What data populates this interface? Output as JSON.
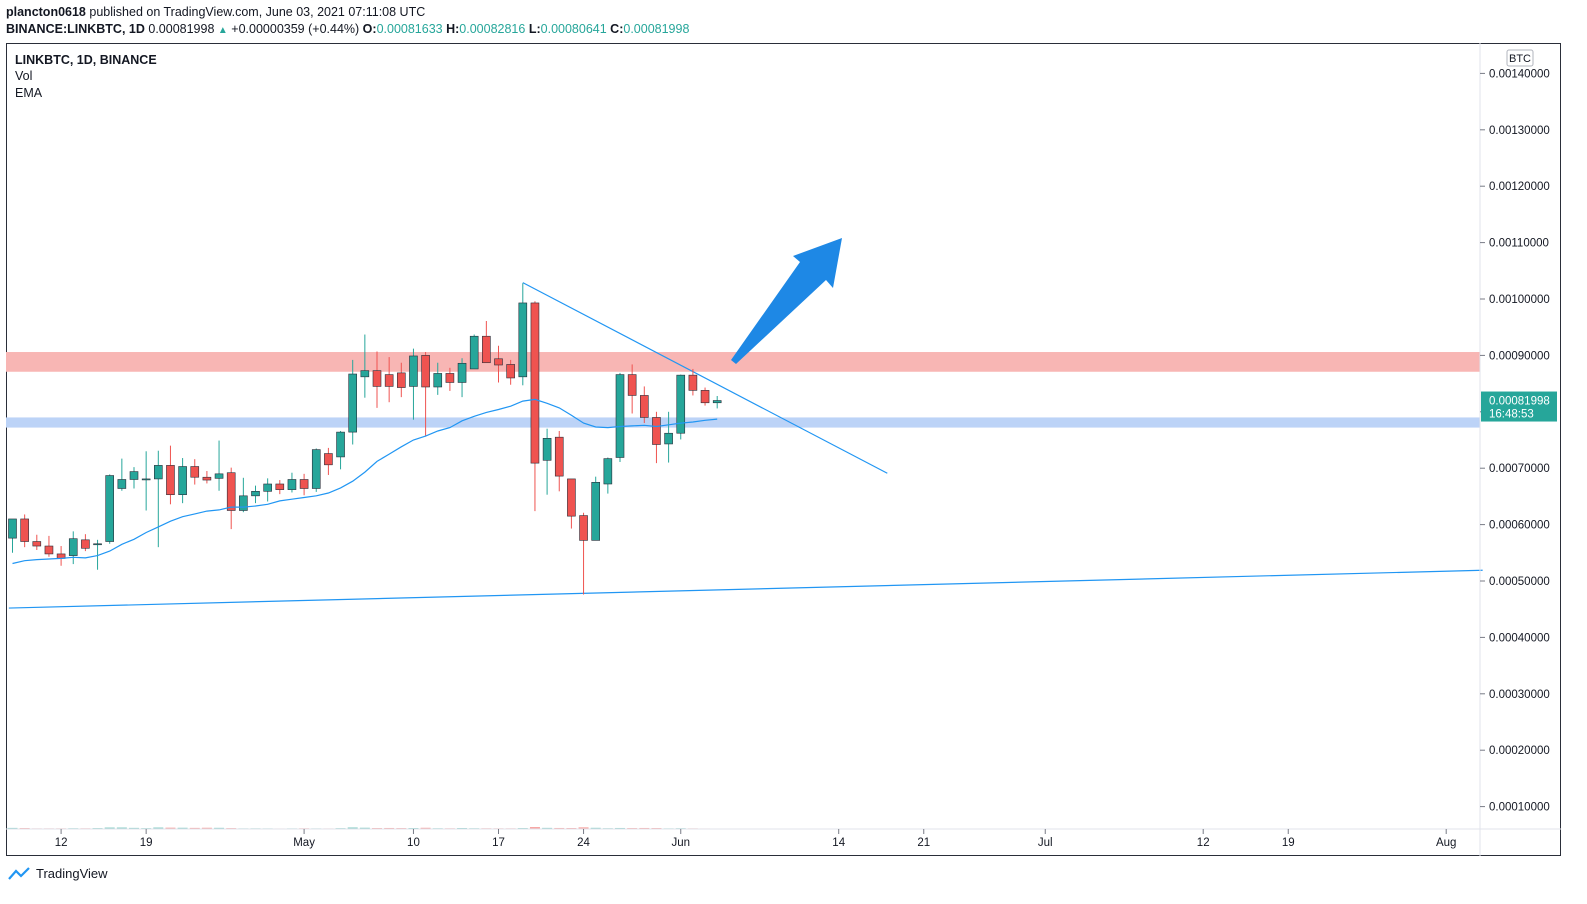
{
  "header": {
    "author": "plancton0618",
    "published_text": "published on TradingView.com, June 03, 2021 07:11:08 UTC",
    "symbol_line": "BINANCE:LINKBTC, 1D",
    "last_price": "0.00081998",
    "change_text": "+0.00000359 (+0.44%)",
    "open_label": "O:",
    "open": "0.00081633",
    "high_label": "H:",
    "high": "0.00082816",
    "low_label": "L:",
    "low": "0.00080641",
    "close_label": "C:",
    "close": "0.00081998"
  },
  "legend": {
    "title": "LINKBTC, 1D, BINANCE",
    "vol": "Vol",
    "ema": "EMA"
  },
  "price_axis": {
    "currency": "BTC",
    "last_price_label": "0.00081998",
    "countdown": "16:48:53"
  },
  "footer": {
    "brand": "TradingView"
  },
  "chart_data": {
    "type": "candlestick",
    "symbol": "BINANCE:LINKBTC",
    "interval": "1D",
    "y_ticks": [
      "0.00010000",
      "0.00020000",
      "0.00030000",
      "0.00040000",
      "0.00050000",
      "0.00060000",
      "0.00070000",
      "0.00080000",
      "0.00090000",
      "0.00100000",
      "0.00110000",
      "0.00120000",
      "0.00130000",
      "0.00140000"
    ],
    "x_ticks": [
      "12",
      "19",
      "May",
      "10",
      "17",
      "24",
      "Jun",
      "14",
      "21",
      "Jul",
      "12",
      "19",
      "Aug"
    ],
    "ylim": [
      0.0,
      0.00145
    ],
    "colors": {
      "up": "#26a69a",
      "down": "#ef5350",
      "vol_up": "#94d2cc",
      "vol_down": "#f7a5a3",
      "ema": "#2196f3",
      "resistance": "#f8b6b4",
      "support": "#bcd3f7",
      "arrow": "#1e88e5",
      "trendline": "#2196f3",
      "price_tag": "#26a69a"
    },
    "candles": [
      {
        "o": 0.000576,
        "h": 0.00061,
        "l": 0.00055,
        "c": 0.00061,
        "v": 0.000232
      },
      {
        "o": 0.00061,
        "h": 0.000618,
        "l": 0.00056,
        "c": 0.00057,
        "v": 0.000194
      },
      {
        "o": 0.00057,
        "h": 0.000582,
        "l": 0.000555,
        "c": 0.000562,
        "v": 0.00013
      },
      {
        "o": 0.000562,
        "h": 0.00058,
        "l": 0.000543,
        "c": 0.000548,
        "v": 0.000133
      },
      {
        "o": 0.000548,
        "h": 0.000562,
        "l": 0.000527,
        "c": 0.00054,
        "v": 0.00014
      },
      {
        "o": 0.000545,
        "h": 0.000588,
        "l": 0.00053,
        "c": 0.000575,
        "v": 0.000166
      },
      {
        "o": 0.000573,
        "h": 0.000583,
        "l": 0.000553,
        "c": 0.000558,
        "v": 0.000147
      },
      {
        "o": 0.000565,
        "h": 0.000573,
        "l": 0.00052,
        "c": 0.000566,
        "v": 0.000196
      },
      {
        "o": 0.00057,
        "h": 0.000689,
        "l": 0.000566,
        "c": 0.000687,
        "v": 0.000316
      },
      {
        "o": 0.000664,
        "h": 0.000717,
        "l": 0.00066,
        "c": 0.00068,
        "v": 0.000319
      },
      {
        "o": 0.00068,
        "h": 0.000702,
        "l": 0.000664,
        "c": 0.000694,
        "v": 0.000237
      },
      {
        "o": 0.00068,
        "h": 0.00073,
        "l": 0.000625,
        "c": 0.000681,
        "v": 0.000186
      },
      {
        "o": 0.000681,
        "h": 0.000731,
        "l": 0.00056,
        "c": 0.000705,
        "v": 0.000319
      },
      {
        "o": 0.000705,
        "h": 0.00074,
        "l": 0.000636,
        "c": 0.000653,
        "v": 0.00028
      },
      {
        "o": 0.000653,
        "h": 0.000718,
        "l": 0.000638,
        "c": 0.000703,
        "v": 0.000263
      },
      {
        "o": 0.000703,
        "h": 0.000716,
        "l": 0.000671,
        "c": 0.000684,
        "v": 0.000234
      },
      {
        "o": 0.000684,
        "h": 0.000695,
        "l": 0.000673,
        "c": 0.000679,
        "v": 0.000262
      },
      {
        "o": 0.000682,
        "h": 0.000749,
        "l": 0.00066,
        "c": 0.00069,
        "v": 0.000248
      },
      {
        "o": 0.000692,
        "h": 0.000701,
        "l": 0.000592,
        "c": 0.000625,
        "v": 0.000188
      },
      {
        "o": 0.000625,
        "h": 0.000683,
        "l": 0.000622,
        "c": 0.000651,
        "v": 0.000136
      },
      {
        "o": 0.000651,
        "h": 0.000669,
        "l": 0.000638,
        "c": 0.000659,
        "v": 0.000146
      },
      {
        "o": 0.000659,
        "h": 0.000682,
        "l": 0.000641,
        "c": 0.000672,
        "v": 0.000132
      },
      {
        "o": 0.000672,
        "h": 0.000679,
        "l": 0.000654,
        "c": 0.000662,
        "v": 0.000111
      },
      {
        "o": 0.000662,
        "h": 0.000692,
        "l": 0.000657,
        "c": 0.00068,
        "v": 0.000132
      },
      {
        "o": 0.00068,
        "h": 0.00069,
        "l": 0.000652,
        "c": 0.000664,
        "v": 0.000153
      },
      {
        "o": 0.000664,
        "h": 0.000735,
        "l": 0.000658,
        "c": 0.000733,
        "v": 0.000131
      },
      {
        "o": 0.000726,
        "h": 0.000736,
        "l": 0.000688,
        "c": 0.000706,
        "v": 0.00012
      },
      {
        "o": 0.00072,
        "h": 0.000766,
        "l": 0.000698,
        "c": 0.000764,
        "v": 0.00018
      },
      {
        "o": 0.000764,
        "h": 0.000892,
        "l": 0.000742,
        "c": 0.000867,
        "v": 0.000333
      },
      {
        "o": 0.000862,
        "h": 0.000937,
        "l": 0.000825,
        "c": 0.000873,
        "v": 0.000267
      },
      {
        "o": 0.000873,
        "h": 0.000907,
        "l": 0.000807,
        "c": 0.000845,
        "v": 0.0002
      },
      {
        "o": 0.000866,
        "h": 0.000897,
        "l": 0.000817,
        "c": 0.000845,
        "v": 0.000214
      },
      {
        "o": 0.000869,
        "h": 0.000887,
        "l": 0.000826,
        "c": 0.000843,
        "v": 0.000193
      },
      {
        "o": 0.000845,
        "h": 0.000912,
        "l": 0.000786,
        "c": 0.000899,
        "v": 0.000205
      },
      {
        "o": 0.0009,
        "h": 0.000906,
        "l": 0.000756,
        "c": 0.000844,
        "v": 0.000255
      },
      {
        "o": 0.000844,
        "h": 0.000887,
        "l": 0.00083,
        "c": 0.000868,
        "v": 0.000167
      },
      {
        "o": 0.000868,
        "h": 0.000878,
        "l": 0.000837,
        "c": 0.000852,
        "v": 0.000153
      },
      {
        "o": 0.000852,
        "h": 0.000895,
        "l": 0.000826,
        "c": 0.000886,
        "v": 0.000208
      },
      {
        "o": 0.000876,
        "h": 0.000937,
        "l": 0.000876,
        "c": 0.000934,
        "v": 0.000164
      },
      {
        "o": 0.000934,
        "h": 0.000961,
        "l": 0.000896,
        "c": 0.000887,
        "v": 0.000155
      },
      {
        "o": 0.000894,
        "h": 0.000917,
        "l": 0.000852,
        "c": 0.000883,
        "v": 0.000145
      },
      {
        "o": 0.000884,
        "h": 0.000892,
        "l": 0.000848,
        "c": 0.00086,
        "v": 0.000143
      },
      {
        "o": 0.000862,
        "h": 0.001028,
        "l": 0.000847,
        "c": 0.000993,
        "v": 0.0002
      },
      {
        "o": 0.000993,
        "h": 0.000996,
        "l": 0.000624,
        "c": 0.000709,
        "v": 0.000411
      },
      {
        "o": 0.000714,
        "h": 0.00077,
        "l": 0.000653,
        "c": 0.000753,
        "v": 0.000238
      },
      {
        "o": 0.000755,
        "h": 0.000766,
        "l": 0.000659,
        "c": 0.000686,
        "v": 0.000215
      },
      {
        "o": 0.000681,
        "h": 0.000679,
        "l": 0.000593,
        "c": 0.000615,
        "v": 0.000206
      },
      {
        "o": 0.000616,
        "h": 0.000621,
        "l": 0.000476,
        "c": 0.000572,
        "v": 0.000346
      },
      {
        "o": 0.000572,
        "h": 0.000685,
        "l": 0.000575,
        "c": 0.000675,
        "v": 0.000252
      },
      {
        "o": 0.000672,
        "h": 0.000719,
        "l": 0.000655,
        "c": 0.000717,
        "v": 0.00017
      },
      {
        "o": 0.000719,
        "h": 0.000869,
        "l": 0.000711,
        "c": 0.000866,
        "v": 0.000216
      },
      {
        "o": 0.000866,
        "h": 0.000884,
        "l": 0.000797,
        "c": 0.000829,
        "v": 0.000196
      },
      {
        "o": 0.000829,
        "h": 0.000845,
        "l": 0.00078,
        "c": 0.00079,
        "v": 0.000216
      },
      {
        "o": 0.00079,
        "h": 0.0008,
        "l": 0.000709,
        "c": 0.000742,
        "v": 0.000201
      },
      {
        "o": 0.000743,
        "h": 0.0008,
        "l": 0.00071,
        "c": 0.000762,
        "v": 0.00014
      },
      {
        "o": 0.000762,
        "h": 0.000866,
        "l": 0.000751,
        "c": 0.000865,
        "v": 0.00017
      },
      {
        "o": 0.000865,
        "h": 0.000876,
        "l": 0.000829,
        "c": 0.000838,
        "v": 0.000132
      },
      {
        "o": 0.000838,
        "h": 0.000843,
        "l": 0.000811,
        "c": 0.000816,
        "v": 0.000111
      },
      {
        "o": 0.000816,
        "h": 0.000828,
        "l": 0.000806,
        "c": 0.00082,
        "v": 1.5e-05
      }
    ],
    "ema": [
      0.000531,
      0.000536,
      0.000538,
      0.000539,
      0.00054,
      0.000542,
      0.000541,
      0.000545,
      0.000553,
      0.000565,
      0.000574,
      0.000586,
      0.000596,
      0.000606,
      0.000614,
      0.000619,
      0.000624,
      0.000626,
      0.000631,
      0.000631,
      0.000633,
      0.000636,
      0.000642,
      0.000645,
      0.000648,
      0.000651,
      0.000656,
      0.000665,
      0.000677,
      0.000693,
      0.000712,
      0.000725,
      0.000738,
      0.00075,
      0.000757,
      0.000766,
      0.000772,
      0.000784,
      0.000792,
      0.000799,
      0.000804,
      0.00081,
      0.000819,
      0.000822,
      0.000815,
      0.000807,
      0.000794,
      0.00078,
      0.000773,
      0.000772,
      0.000774,
      0.000775,
      0.000776,
      0.000774,
      0.000777,
      0.00078,
      0.000782,
      0.000785,
      0.000787
    ],
    "zones": [
      {
        "name": "resistance",
        "from": 0.000871,
        "to": 0.000906
      },
      {
        "name": "support",
        "from": 0.000772,
        "to": 0.00079
      }
    ],
    "trendlines": [
      {
        "name": "descending",
        "from": {
          "i": 42,
          "p": 0.001029
        },
        "to": {
          "i": 72,
          "p": 0.000691
        }
      },
      {
        "name": "ascending",
        "from": {
          "i": -0.3,
          "p": 0.000452
        },
        "to": {
          "i": 121,
          "p": 0.000519
        }
      }
    ]
  }
}
